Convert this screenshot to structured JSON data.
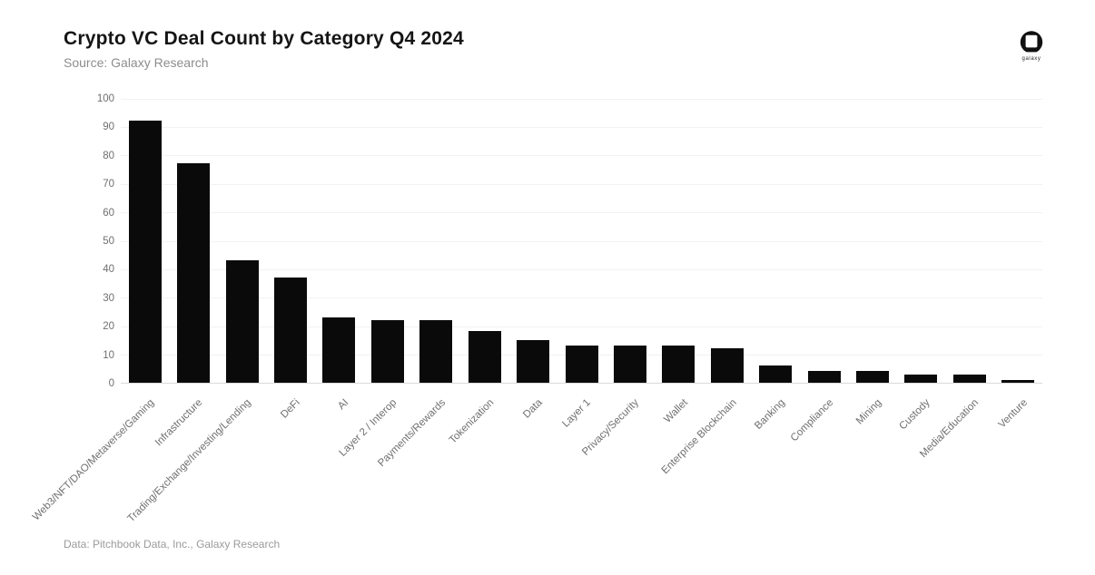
{
  "header": {
    "title": "Crypto VC Deal Count by Category Q4 2024",
    "subtitle": "Source: Galaxy Research"
  },
  "logo": {
    "label": "galaxy"
  },
  "footer": {
    "credit": "Data: Pitchbook Data, Inc., Galaxy Research"
  },
  "chart_data": {
    "type": "bar",
    "title": "Crypto VC Deal Count by Category Q4 2024",
    "subtitle": "Source: Galaxy Research",
    "categories": [
      "Web3/NFT/DAO/Metaverse/Gaming",
      "Infrastructure",
      "Trading/Exchange/Investing/Lending",
      "DeFi",
      "AI",
      "Layer 2 / Interop",
      "Payments/Rewards",
      "Tokenization",
      "Data",
      "Layer 1",
      "Privacy/Security",
      "Wallet",
      "Enterprise Blockchain",
      "Banking",
      "Compliance",
      "Mining",
      "Custody",
      "Media/Education",
      "Venture"
    ],
    "values": [
      92,
      77,
      43,
      37,
      23,
      22,
      22,
      18,
      15,
      13,
      13,
      13,
      12,
      6,
      4,
      4,
      3,
      3,
      1
    ],
    "xlabel": "",
    "ylabel": "",
    "ylim": [
      0,
      100
    ],
    "ytick_step": 10,
    "grid": "horizontal-faint",
    "legend": "none"
  },
  "colors": {
    "bar": "#0a0a0a",
    "grid": "#f2f2f2",
    "baseline": "#d9d9d9",
    "axis_text": "#6f6f6f",
    "title_text": "#151515",
    "subtitle_text": "#8d8d8d",
    "footer_text": "#9b9b9b",
    "background": "#ffffff",
    "logo": "#111111"
  }
}
